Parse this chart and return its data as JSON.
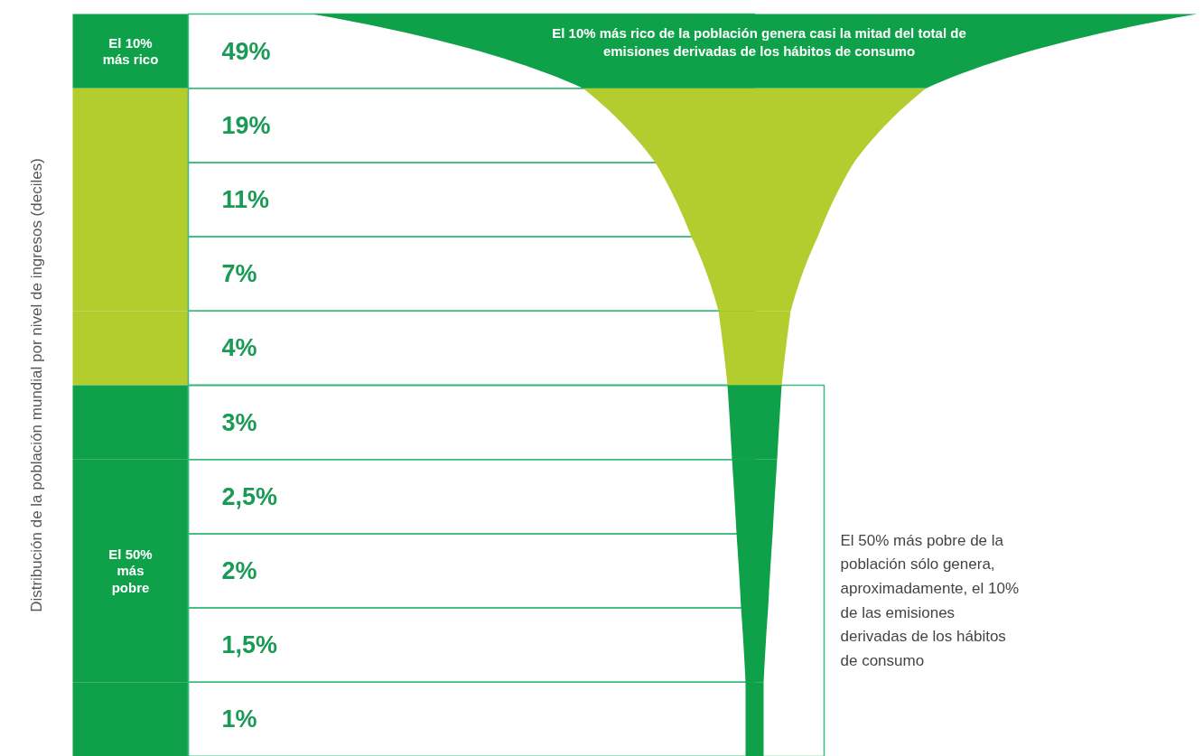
{
  "chart_data": {
    "type": "other",
    "ylabel": "Distribución de la población mundial por nivel de ingresos (deciles)",
    "categories": [
      "El 10% más rico",
      null,
      null,
      null,
      null,
      null,
      null,
      null,
      null,
      null
    ],
    "values": [
      49,
      19,
      11,
      7,
      4,
      3,
      2.5,
      2,
      1.5,
      1
    ],
    "value_labels": [
      "49%",
      "19%",
      "11%",
      "7%",
      "4%",
      "3%",
      "2,5%",
      "2%",
      "1,5%",
      "1%"
    ],
    "colors": [
      "#0fa14a",
      "#b4cd2e",
      "#b4cd2e",
      "#b4cd2e",
      "#b4cd2e",
      "#0fa14a",
      "#0fa14a",
      "#0fa14a",
      "#0fa14a",
      "#0fa14a"
    ],
    "annotations": [
      "El 10% más rico de la población genera casi la mitad del total de emisiones derivadas de los hábitos de consumo",
      "El 50% más pobre de la población sólo genera, aproximadamente, el 10% de las emisiones derivadas de los hábitos de consumo",
      "El 50% más pobre"
    ]
  }
}
